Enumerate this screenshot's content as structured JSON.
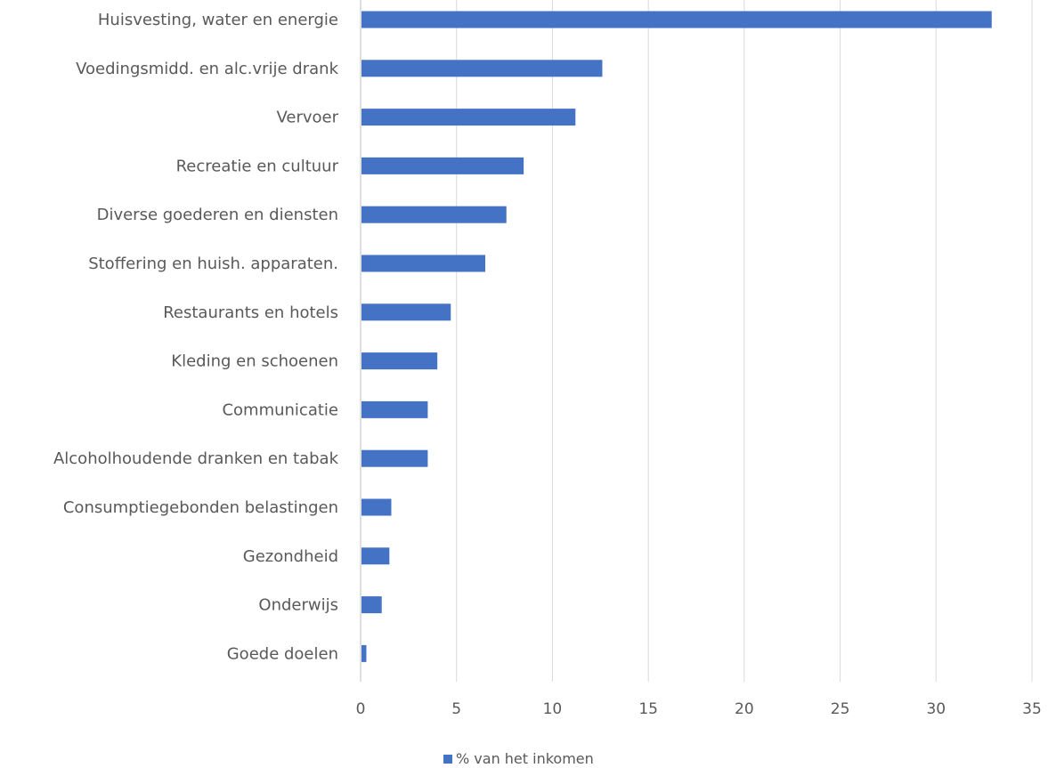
{
  "chart_data": {
    "type": "bar",
    "orientation": "horizontal",
    "categories": [
      "Huisvesting, water en energie",
      "Voedingsmidd. en alc.vrije drank",
      "Vervoer",
      "Recreatie en cultuur",
      "Diverse goederen en diensten",
      "Stoffering en huish. apparaten.",
      "Restaurants en hotels",
      "Kleding en schoenen",
      "Communicatie",
      "Alcoholhoudende dranken en tabak",
      "Consumptiegebonden belastingen",
      "Gezondheid",
      "Onderwijs",
      "Goede doelen"
    ],
    "series": [
      {
        "name": "% van het inkomen",
        "color": "#4472c4",
        "values": [
          32.9,
          12.6,
          11.2,
          8.5,
          7.6,
          6.5,
          4.7,
          4.0,
          3.5,
          3.5,
          1.6,
          1.5,
          1.1,
          0.3
        ]
      }
    ],
    "xlim": [
      0,
      35
    ],
    "xticks": [
      0,
      5,
      10,
      15,
      20,
      25,
      30,
      35
    ],
    "grid": true,
    "legend_position": "bottom"
  }
}
